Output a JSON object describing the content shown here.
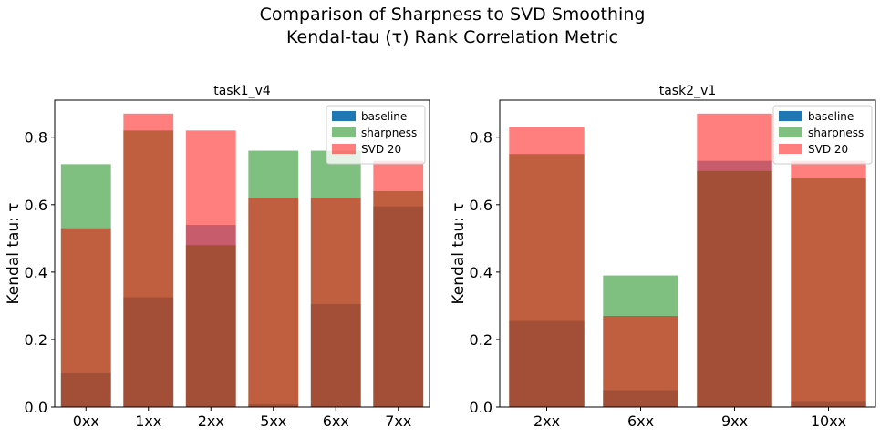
{
  "figure": {
    "title_line1": "Comparison of Sharpness to SVD Smoothing",
    "title_line2": "Kendal-tau (τ) Rank Correlation Metric"
  },
  "colors": {
    "baseline": "#1f77b4",
    "sharpness": "#008000",
    "svd": "#ff0000",
    "bar_alpha": 0.5
  },
  "chart_data": [
    {
      "type": "bar",
      "title": "task1_v4",
      "xlabel": "",
      "ylabel": "Kendal tau: τ",
      "categories": [
        "0xx",
        "1xx",
        "2xx",
        "5xx",
        "6xx",
        "7xx"
      ],
      "ylim": [
        0,
        0.91
      ],
      "yticks": [
        0.0,
        0.2,
        0.4,
        0.6,
        0.8
      ],
      "ytick_labels": [
        "0.0",
        "0.2",
        "0.4",
        "0.6",
        "0.8"
      ],
      "legend": "top-right",
      "series": [
        {
          "name": "baseline",
          "values": [
            0.1,
            0.325,
            0.54,
            0.008,
            0.305,
            0.595
          ]
        },
        {
          "name": "sharpness",
          "values": [
            0.72,
            0.82,
            0.48,
            0.76,
            0.76,
            0.64
          ]
        },
        {
          "name": "SVD 20",
          "values": [
            0.53,
            0.87,
            0.82,
            0.62,
            0.62,
            0.73
          ]
        }
      ]
    },
    {
      "type": "bar",
      "title": "task2_v1",
      "xlabel": "",
      "ylabel": "Kendal tau: τ",
      "categories": [
        "2xx",
        "6xx",
        "9xx",
        "10xx"
      ],
      "ylim": [
        0,
        0.91
      ],
      "yticks": [
        0.0,
        0.2,
        0.4,
        0.6,
        0.8
      ],
      "ytick_labels": [
        "0.0",
        "0.2",
        "0.4",
        "0.6",
        "0.8"
      ],
      "legend": "top-right",
      "series": [
        {
          "name": "baseline",
          "values": [
            0.255,
            0.05,
            0.73,
            0.015
          ]
        },
        {
          "name": "sharpness",
          "values": [
            0.75,
            0.39,
            0.7,
            0.68
          ]
        },
        {
          "name": "SVD 20",
          "values": [
            0.83,
            0.27,
            0.87,
            0.73
          ]
        }
      ]
    }
  ]
}
